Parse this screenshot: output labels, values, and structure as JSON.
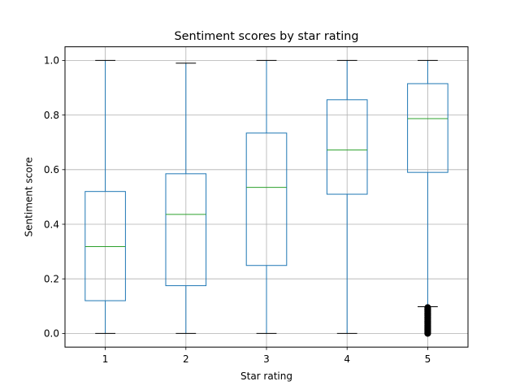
{
  "chart_data": {
    "type": "boxplot",
    "title": "Sentiment scores by star rating",
    "xlabel": "Star rating",
    "ylabel": "Sentiment score",
    "categories": [
      "1",
      "2",
      "3",
      "4",
      "5"
    ],
    "boxes": [
      {
        "category": "1",
        "whisker_low": 0.0,
        "q1": 0.12,
        "median": 0.318,
        "q3": 0.52,
        "whisker_high": 1.0,
        "outliers": []
      },
      {
        "category": "2",
        "whisker_low": 0.0,
        "q1": 0.175,
        "median": 0.436,
        "q3": 0.585,
        "whisker_high": 0.99,
        "outliers": []
      },
      {
        "category": "3",
        "whisker_low": 0.0,
        "q1": 0.249,
        "median": 0.535,
        "q3": 0.734,
        "whisker_high": 1.0,
        "outliers": []
      },
      {
        "category": "4",
        "whisker_low": 0.0,
        "q1": 0.51,
        "median": 0.672,
        "q3": 0.856,
        "whisker_high": 1.0,
        "outliers": []
      },
      {
        "category": "5",
        "whisker_low": 0.098,
        "q1": 0.59,
        "median": 0.787,
        "q3": 0.915,
        "whisker_high": 1.0,
        "outliers": [
          0.095,
          0.09,
          0.085,
          0.08,
          0.075,
          0.07,
          0.065,
          0.06,
          0.055,
          0.05,
          0.045,
          0.04,
          0.035,
          0.03,
          0.025,
          0.02,
          0.015,
          0.01,
          0.005,
          0.0
        ]
      }
    ],
    "ylim": [
      -0.05,
      1.05
    ],
    "yticks": [
      "0.0",
      "0.2",
      "0.4",
      "0.6",
      "0.8",
      "1.0"
    ],
    "grid": true,
    "colors": {
      "box": "#1f77b4",
      "median": "#2ca02c",
      "cap": "#000000",
      "grid": "#b0b0b0",
      "outlier": "#000000"
    }
  }
}
